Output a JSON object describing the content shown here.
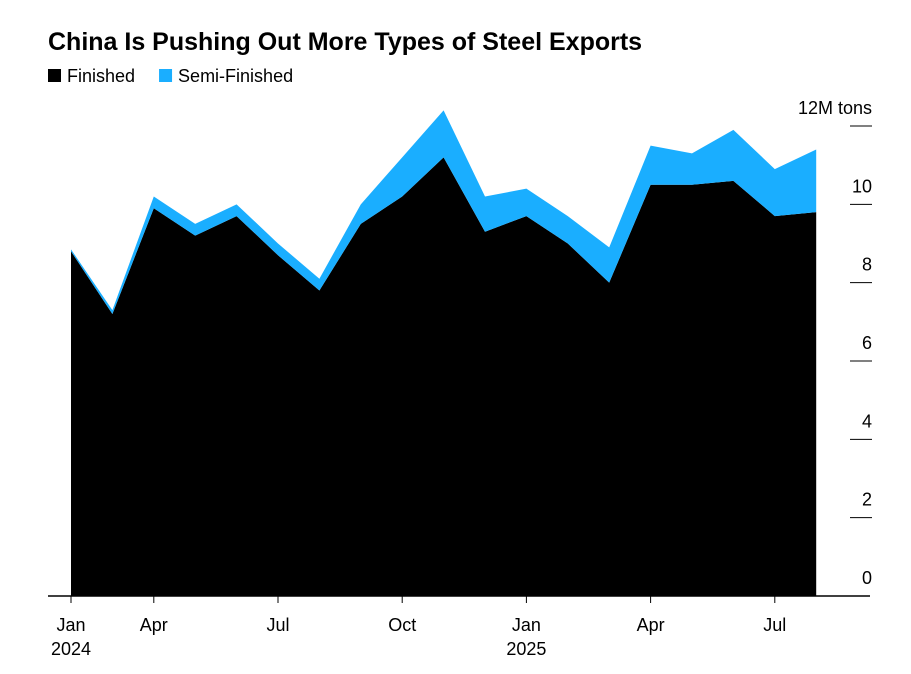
{
  "chart_data": {
    "type": "stacked_area",
    "title": "China Is Pushing Out More Types of Steel Exports",
    "categories": [
      "Jan",
      null,
      "Apr",
      null,
      null,
      "Jul",
      null,
      null,
      "Oct",
      null,
      null,
      "Jan",
      null,
      null,
      "Apr",
      null,
      null,
      "Jul",
      null
    ],
    "category_years": [
      "2024",
      null,
      null,
      null,
      null,
      null,
      null,
      null,
      null,
      null,
      null,
      "2025",
      null,
      null,
      null,
      null,
      null,
      null,
      null
    ],
    "series": [
      {
        "name": "Finished",
        "color": "#000000",
        "values": [
          8.8,
          7.2,
          9.9,
          9.2,
          9.7,
          8.7,
          7.8,
          9.5,
          10.2,
          11.2,
          9.3,
          9.7,
          9.0,
          8.0,
          10.5,
          10.5,
          10.6,
          9.7,
          9.8
        ]
      },
      {
        "name": "Semi-Finished",
        "color": "#1aaeff",
        "values": [
          0.05,
          0.1,
          0.3,
          0.3,
          0.3,
          0.3,
          0.3,
          0.5,
          1.0,
          1.2,
          0.9,
          0.7,
          0.7,
          0.9,
          1.0,
          0.8,
          1.3,
          1.2,
          1.6
        ]
      }
    ],
    "ylim": [
      0,
      12
    ],
    "yticks": [
      0,
      2,
      4,
      6,
      8,
      10,
      {
        "value": 12,
        "label": "12M tons"
      }
    ]
  }
}
